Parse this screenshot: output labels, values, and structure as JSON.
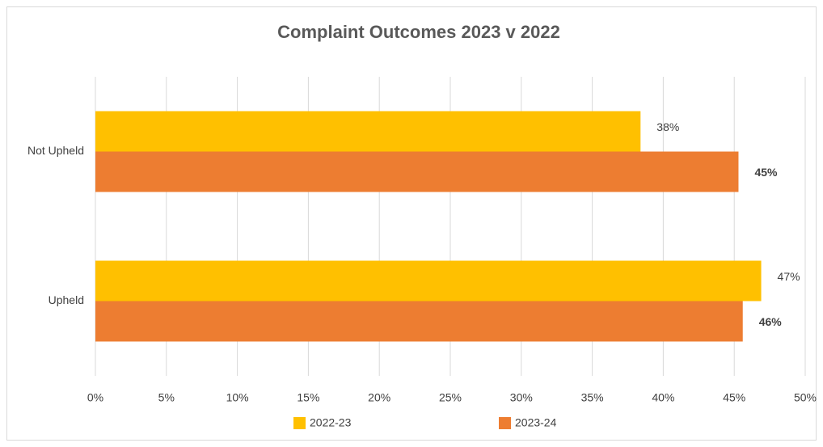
{
  "chart_data": {
    "type": "hbar",
    "title": "Complaint Outcomes 2023 v 2022",
    "categories": [
      "Not Upheld",
      "Upheld"
    ],
    "series": [
      {
        "name": "2022-23",
        "color": "#FFC000",
        "values": [
          38.4,
          46.9
        ],
        "value_labels": [
          "38%",
          "47%"
        ]
      },
      {
        "name": "2023-24",
        "color": "#ED7D31",
        "values": [
          45.3,
          45.6
        ],
        "value_labels": [
          "45%",
          "46%"
        ]
      }
    ],
    "xlim": [
      0,
      50
    ],
    "xticks": [
      {
        "value": 0,
        "label": "0%"
      },
      {
        "value": 5,
        "label": "5%"
      },
      {
        "value": 10,
        "label": "10%"
      },
      {
        "value": 15,
        "label": "15%"
      },
      {
        "value": 20,
        "label": "20%"
      },
      {
        "value": 25,
        "label": "25%"
      },
      {
        "value": 30,
        "label": "30%"
      },
      {
        "value": 35,
        "label": "35%"
      },
      {
        "value": 40,
        "label": "40%"
      },
      {
        "value": 45,
        "label": "45%"
      },
      {
        "value": 50,
        "label": "50%"
      }
    ],
    "grid": true,
    "legend": "bottom"
  }
}
